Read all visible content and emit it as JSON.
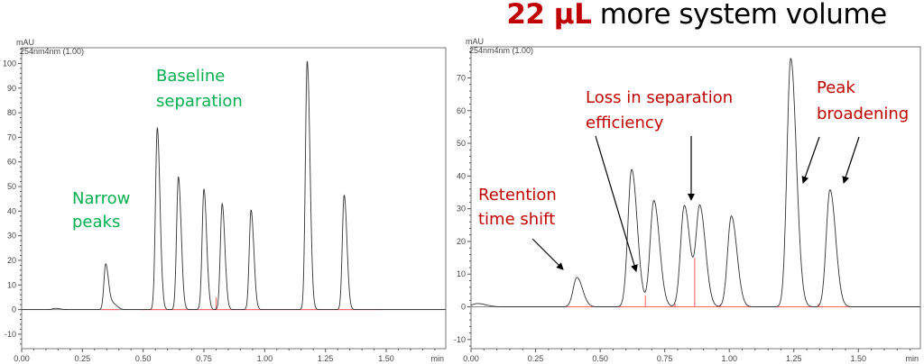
{
  "title": {
    "highlight": "22 µL",
    "rest": " more system volume",
    "highlight_color": "#c00000"
  },
  "chart_data": [
    {
      "type": "line",
      "ylabel": "mAU",
      "xlabel": "min",
      "trace_label": "254nm4nm (1.00)",
      "xlim": [
        0,
        1.745
      ],
      "ylim": [
        -15.9,
        106.4
      ],
      "xticks": [
        "0.00",
        "0.25",
        "0.50",
        "0.75",
        "1.00",
        "1.25",
        "1.50"
      ],
      "yticks": [
        "-10",
        "0",
        "10",
        "20",
        "30",
        "40",
        "50",
        "60",
        "70",
        "80",
        "90",
        "100"
      ],
      "peaks": [
        {
          "rt": 0.14,
          "height": 0.5
        },
        {
          "rt": 0.346,
          "height": 18.5
        },
        {
          "rt": 0.375,
          "height": 2.5
        },
        {
          "rt": 0.558,
          "height": 74
        },
        {
          "rt": 0.645,
          "height": 54
        },
        {
          "rt": 0.75,
          "height": 49
        },
        {
          "rt": 0.825,
          "height": 43
        },
        {
          "rt": 0.944,
          "height": 40.5
        },
        {
          "rt": 1.175,
          "height": 101
        },
        {
          "rt": 1.327,
          "height": 46.5
        }
      ],
      "integration_drop_lines": [
        {
          "rt": 0.8,
          "height": 5
        }
      ],
      "trace_color": "#333333",
      "baseline_color": "#ff6060",
      "annotations": [
        {
          "lines": [
            "Baseline",
            "separation"
          ],
          "color": "#00b050"
        },
        {
          "lines": [
            "Narrow",
            "peaks"
          ],
          "color": "#00b050"
        }
      ]
    },
    {
      "type": "line",
      "ylabel": "mAU",
      "xlabel": "min",
      "trace_label": "254nm4nm (1.00)",
      "xlim": [
        0,
        1.74
      ],
      "ylim": [
        -12.8,
        79.5
      ],
      "xticks": [
        "0.00",
        "0.25",
        "0.50",
        "0.75",
        "1.00",
        "1.25",
        "1.50"
      ],
      "yticks": [
        "-10",
        "0",
        "10",
        "20",
        "30",
        "40",
        "50",
        "60",
        "70"
      ],
      "peaks": [
        {
          "rt": 0.025,
          "height": 1
        },
        {
          "rt": 0.41,
          "height": 9
        },
        {
          "rt": 0.622,
          "height": 42
        },
        {
          "rt": 0.708,
          "height": 32.5
        },
        {
          "rt": 0.826,
          "height": 31
        },
        {
          "rt": 0.886,
          "height": 30.5
        },
        {
          "rt": 1.008,
          "height": 27.8
        },
        {
          "rt": 1.238,
          "height": 76
        },
        {
          "rt": 1.39,
          "height": 35.8
        }
      ],
      "integration_drop_lines": [
        {
          "rt": 0.675,
          "height": 3.5
        },
        {
          "rt": 0.79,
          "height": 1
        },
        {
          "rt": 0.866,
          "height": 15
        },
        {
          "rt": 0.965,
          "height": 0.8
        },
        {
          "rt": 1.345,
          "height": 1
        }
      ],
      "trace_color": "#333333",
      "baseline_color": "#ff6060",
      "annotations": [
        {
          "lines": [
            "Loss in separation",
            "efficiency"
          ],
          "color": "#c00000"
        },
        {
          "lines": [
            "Retention",
            "time shift"
          ],
          "color": "#c00000"
        },
        {
          "lines": [
            "Peak",
            "broadening"
          ],
          "color": "#c00000"
        }
      ]
    }
  ]
}
